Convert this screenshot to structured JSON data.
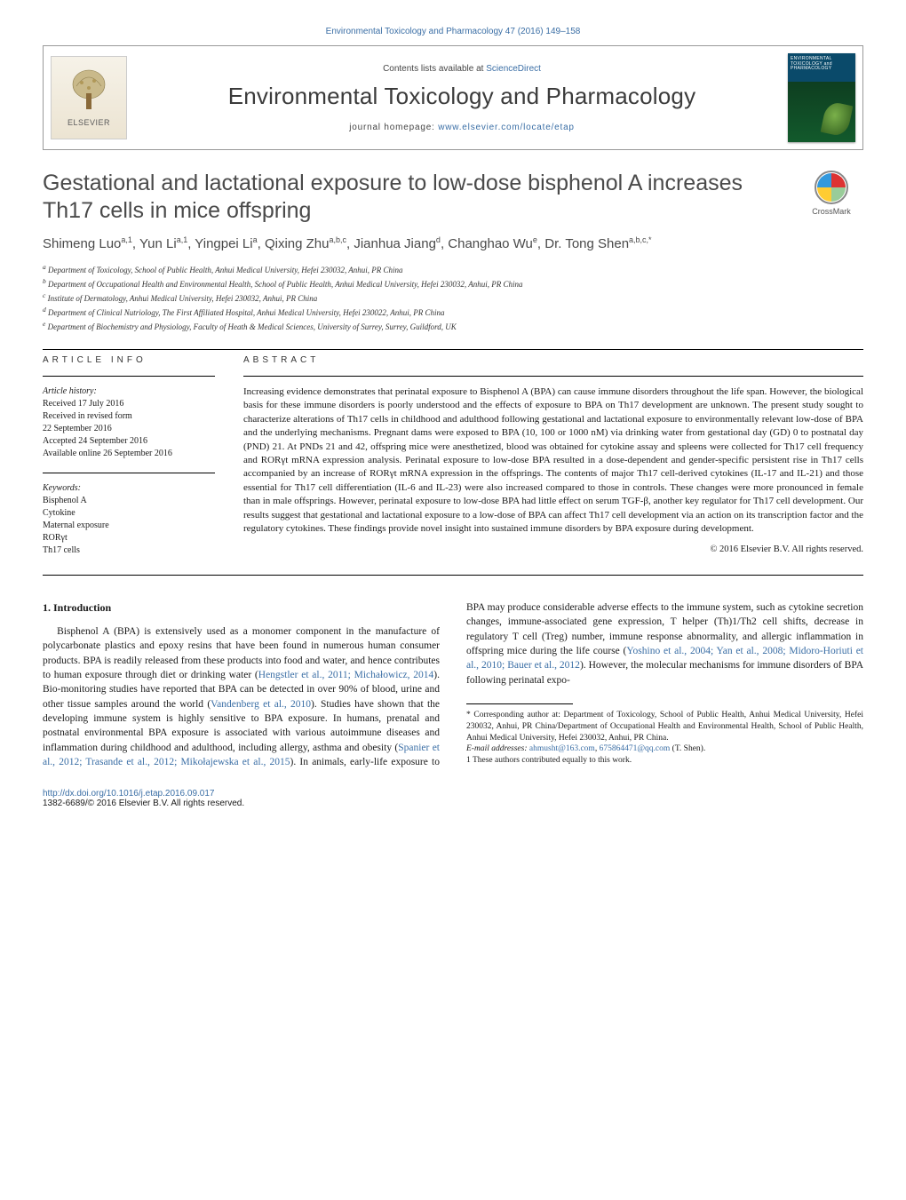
{
  "top_journal_ref": "Environmental Toxicology and Pharmacology 47 (2016) 149–158",
  "header": {
    "contents_prefix": "Contents lists available at ",
    "contents_link": "ScienceDirect",
    "journal_title": "Environmental Toxicology and Pharmacology",
    "homepage_prefix": "journal homepage: ",
    "homepage_url": "www.elsevier.com/locate/etap",
    "publisher": "ELSEVIER",
    "cover_text": "ENVIRONMENTAL TOXICOLOGY and PHARMACOLOGY"
  },
  "crossmark_label": "CrossMark",
  "article": {
    "title": "Gestational and lactational exposure to low-dose bisphenol A increases Th17 cells in mice offspring",
    "authors_html": "Shimeng Luo<sup>a,1</sup>, Yun Li<sup>a,1</sup>, Yingpei Li<sup>a</sup>, Qixing Zhu<sup>a,b,c</sup>, Jianhua Jiang<sup>d</sup>, Changhao Wu<sup>e</sup>, Dr. Tong Shen<sup>a,b,c,*</sup>",
    "affiliations": [
      "a Department of Toxicology, School of Public Health, Anhui Medical University, Hefei 230032, Anhui, PR China",
      "b Department of Occupational Health and Environmental Health, School of Public Health, Anhui Medical University, Hefei 230032, Anhui, PR China",
      "c Institute of Dermatology, Anhui Medical University, Hefei 230032, Anhui, PR China",
      "d Department of Clinical Nutriology, The First Affiliated Hospital, Anhui Medical University, Hefei 230022, Anhui, PR China",
      "e Department of Biochemistry and Physiology, Faculty of Heath & Medical Sciences, University of Surrey, Surrey, Guildford, UK"
    ]
  },
  "article_info": {
    "heading": "ARTICLE INFO",
    "history_label": "Article history:",
    "history": [
      "Received 17 July 2016",
      "Received in revised form",
      "22 September 2016",
      "Accepted 24 September 2016",
      "Available online 26 September 2016"
    ],
    "keywords_label": "Keywords:",
    "keywords": [
      "Bisphenol A",
      "Cytokine",
      "Maternal exposure",
      "RORγt",
      "Th17 cells"
    ]
  },
  "abstract": {
    "heading": "ABSTRACT",
    "text": "Increasing evidence demonstrates that perinatal exposure to Bisphenol A (BPA) can cause immune disorders throughout the life span. However, the biological basis for these immune disorders is poorly understood and the effects of exposure to BPA on Th17 development are unknown. The present study sought to characterize alterations of Th17 cells in childhood and adulthood following gestational and lactational exposure to environmentally relevant low-dose of BPA and the underlying mechanisms. Pregnant dams were exposed to BPA (10, 100 or 1000 nM) via drinking water from gestational day (GD) 0 to postnatal day (PND) 21. At PNDs 21 and 42, offspring mice were anesthetized, blood was obtained for cytokine assay and spleens were collected for Th17 cell frequency and RORγt mRNA expression analysis. Perinatal exposure to low-dose BPA resulted in a dose-dependent and gender-specific persistent rise in Th17 cells accompanied by an increase of RORγt mRNA expression in the offsprings. The contents of major Th17 cell-derived cytokines (IL-17 and IL-21) and those essential for Th17 cell differentiation (IL-6 and IL-23) were also increased compared to those in controls. These changes were more pronounced in female than in male offsprings. However, perinatal exposure to low-dose BPA had little effect on serum TGF-β, another key regulator for Th17 cell development. Our results suggest that gestational and lactational exposure to a low-dose of BPA can affect Th17 cell development via an action on its transcription factor and the regulatory cytokines. These findings provide novel insight into sustained immune disorders by BPA exposure during development.",
    "copyright": "© 2016 Elsevier B.V. All rights reserved."
  },
  "body": {
    "section_heading": "1. Introduction",
    "col1_text": "Bisphenol A (BPA) is extensively used as a monomer component in the manufacture of polycarbonate plastics and epoxy resins that have been found in numerous human consumer products. BPA is readily released from these products into food and water, and hence contributes to human exposure through diet or drinking water (",
    "ref1": "Hengstler et al., 2011; Michałowicz, 2014",
    "col1_text2": "). Bio-monitoring studies have reported that BPA can be detected in over 90% of blood,",
    "col2_text": "urine and other tissue samples around the world (",
    "ref2": "Vandenberg et al., 2010",
    "col2_text2": "). Studies have shown that the developing immune system is highly sensitive to BPA exposure. In humans, prenatal and postnatal environmental BPA exposure is associated with various autoimmune diseases and inflammation during childhood and adulthood, including allergy, asthma and obesity (",
    "ref3": "Spanier et al., 2012; Trasande et al., 2012; Mikołajewska et al., 2015",
    "col2_text3": "). In animals, early-life exposure to BPA may produce considerable adverse effects to the immune system, such as cytokine secretion changes, immune-associated gene expression, T helper (Th)1/Th2 cell shifts, decrease in regulatory T cell (Treg) number, immune response abnormality, and allergic inflammation in offspring mice during the life course (",
    "ref4": "Yoshino et al., 2004; Yan et al., 2008; Midoro-Horiuti et al., 2010; Bauer et al., 2012",
    "col2_text4": "). However, the molecular mechanisms for immune disorders of BPA following perinatal expo-"
  },
  "footnotes": {
    "corr": "* Corresponding author at: Department of Toxicology, School of Public Health, Anhui Medical University, Hefei 230032, Anhui, PR China/Department of Occupational Health and Environmental Health, School of Public Health, Anhui Medical University, Hefei 230032, Anhui, PR China.",
    "email_label": "E-mail addresses: ",
    "email1": "ahmusht@163.com",
    "email_sep": ", ",
    "email2": "675864471@qq.com",
    "email_suffix": " (T. Shen).",
    "equal": "1 These authors contributed equally to this work."
  },
  "footer": {
    "doi": "http://dx.doi.org/10.1016/j.etap.2016.09.017",
    "issn_line": "1382-6689/© 2016 Elsevier B.V. All rights reserved."
  },
  "colors": {
    "link": "#3a6ea5",
    "text": "#1a1a1a",
    "heading_gray": "#4a4a4a"
  }
}
